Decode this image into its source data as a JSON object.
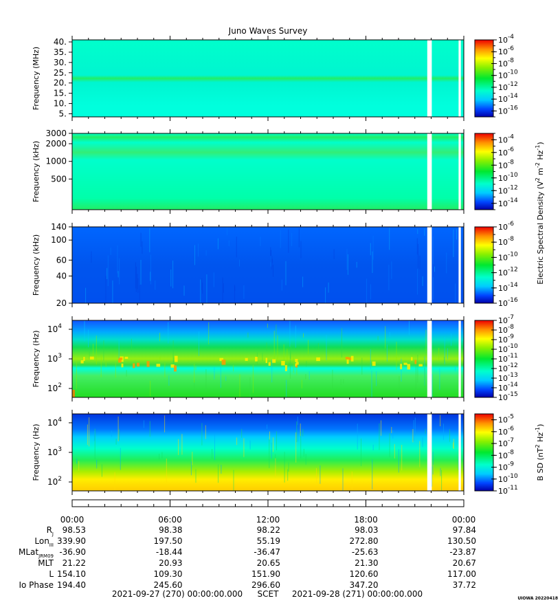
{
  "title": "Juno Waves Survey",
  "credit": "UIOWA 20220418",
  "chart_data": {
    "type": "heatmap",
    "title": "Juno Waves Survey",
    "x_axis": {
      "label": "SCET",
      "start": "2021-09-27 (270) 00:00:00.000",
      "end": "2021-09-28 (271) 00:00:00.000",
      "range_hours": [
        0,
        24
      ],
      "ticks": [
        0,
        6,
        12,
        18,
        24
      ],
      "tick_labels": [
        "00:00",
        "06:00",
        "12:00",
        "18:00",
        "00:00"
      ]
    },
    "data_gaps_hours": [
      [
        21.76,
        22.04
      ],
      [
        23.68,
        23.82
      ]
    ],
    "panels": [
      {
        "ylabel": "Frequency (MHz)",
        "yscale": "linear",
        "ylim": [
          3.5,
          41
        ],
        "yticks": [
          5,
          10,
          15,
          20,
          25,
          30,
          35,
          40
        ],
        "ytick_labels": [
          "5.",
          "10.",
          "15.",
          "20.",
          "25.",
          "30.",
          "35.",
          "40."
        ],
        "colorbar": {
          "log_min": -17,
          "log_max": -4,
          "ticks": [
            -4,
            -6,
            -8,
            -10,
            -12,
            -14,
            -16
          ]
        }
      },
      {
        "ylabel": "Frequency (kHz)",
        "yscale": "log",
        "ylim": [
          150,
          3000
        ],
        "yticks": [
          500,
          1000,
          2000,
          3000
        ],
        "ytick_labels": [
          "500",
          "1000",
          "2000",
          "3000"
        ],
        "colorbar": {
          "log_min": -15,
          "log_max": -3,
          "ticks": [
            -4,
            -6,
            -8,
            -10,
            -12,
            -14
          ]
        }
      },
      {
        "ylabel": "Frequency (kHz)",
        "yscale": "log",
        "ylim": [
          20,
          140
        ],
        "yticks": [
          20,
          40,
          60,
          100,
          140
        ],
        "ytick_labels": [
          "20",
          "40",
          "60",
          "100",
          "140"
        ],
        "colorbar": {
          "log_min": -16,
          "log_max": -6,
          "ticks": [
            -6,
            -8,
            -10,
            -12,
            -14,
            -16
          ]
        }
      },
      {
        "ylabel": "Frequency (Hz)",
        "yscale": "log",
        "ylim": [
          50,
          20000
        ],
        "yticks": [
          100,
          1000,
          10000
        ],
        "ytick_labels": [
          "10",
          "10",
          "10"
        ],
        "ytick_exponents": [
          "2",
          "3",
          "4"
        ],
        "colorbar": {
          "log_min": -15,
          "log_max": -7,
          "ticks": [
            -7,
            -8,
            -9,
            -10,
            -11,
            -12,
            -13,
            -14,
            -15
          ]
        }
      },
      {
        "ylabel": "Frequency (Hz)",
        "yscale": "log",
        "ylim": [
          50,
          20000
        ],
        "yticks": [
          100,
          1000,
          10000
        ],
        "ytick_labels": [
          "10",
          "10",
          "10"
        ],
        "ytick_exponents": [
          "2",
          "3",
          "4"
        ],
        "colorbar": {
          "log_min": -11,
          "log_max": -4.5,
          "ticks": [
            -5,
            -6,
            -7,
            -8,
            -9,
            -10,
            -11
          ]
        }
      }
    ],
    "colorbar_base": "10",
    "colorbar_label_e": "Electric Spectral Density (V",
    "colorbar_label_e_parts": [
      "2",
      " m",
      "-2",
      " Hz",
      "-1",
      ")"
    ],
    "colorbar_label_b": "B SD (nT",
    "colorbar_label_b_parts": [
      "2",
      " Hz",
      "-1",
      ")"
    ],
    "ephemeris": {
      "labels": [
        "R",
        "Lon",
        "MLat",
        "MLT",
        "L",
        "Io Phase"
      ],
      "label_subscripts": [
        "J",
        "III",
        "JRM09",
        "",
        "",
        ""
      ],
      "rows": [
        [
          "98.53",
          "98.38",
          "98.22",
          "98.03",
          "97.84"
        ],
        [
          "339.90",
          "197.50",
          "55.19",
          "272.80",
          "130.50"
        ],
        [
          "-36.90",
          "-18.44",
          "-36.47",
          "-25.63",
          "-23.87"
        ],
        [
          "21.22",
          "20.93",
          "20.65",
          "21.30",
          "20.67"
        ],
        [
          "154.10",
          "109.30",
          "151.90",
          "120.60",
          "117.00"
        ],
        [
          "194.40",
          "245.60",
          "296.60",
          "347.20",
          "37.72"
        ]
      ]
    }
  }
}
